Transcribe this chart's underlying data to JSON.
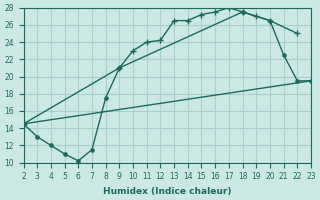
{
  "xlabel": "Humidex (Indice chaleur)",
  "ylabel": "",
  "bg_color": "#cce8e4",
  "grid_color": "#a8cfc9",
  "line_color": "#1a6b5a",
  "xlim": [
    2,
    23
  ],
  "ylim": [
    10,
    28
  ],
  "xticks": [
    2,
    3,
    4,
    5,
    6,
    7,
    8,
    9,
    10,
    11,
    12,
    13,
    14,
    15,
    16,
    17,
    18,
    19,
    20,
    21,
    22,
    23
  ],
  "yticks": [
    10,
    12,
    14,
    16,
    18,
    20,
    22,
    24,
    26,
    28
  ],
  "curve1_x": [
    2,
    9,
    10,
    11,
    12,
    13,
    14,
    15,
    16,
    17,
    18,
    19,
    20,
    22
  ],
  "curve1_y": [
    14.5,
    21,
    23,
    24,
    24.2,
    26.5,
    26.5,
    27.2,
    27.5,
    28,
    27.5,
    27,
    26.5,
    25
  ],
  "curve2_x": [
    2,
    3,
    4,
    5,
    6,
    7,
    8,
    9,
    18,
    20,
    21,
    22,
    23
  ],
  "curve2_y": [
    14.5,
    13,
    12,
    11,
    10.2,
    11.5,
    17.5,
    21,
    27.5,
    26.5,
    22.5,
    19.5,
    19.5
  ],
  "curve3_x": [
    2,
    23
  ],
  "curve3_y": [
    14.5,
    19.5
  ]
}
